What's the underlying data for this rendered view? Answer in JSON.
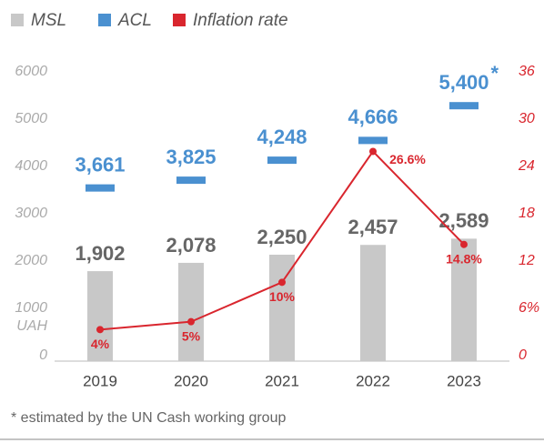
{
  "chart_data": {
    "type": "bar",
    "categories": [
      "2019",
      "2020",
      "2021",
      "2022",
      "2023"
    ],
    "series": [
      {
        "name": "MSL",
        "type": "bar",
        "color": "#c8c8c8",
        "label_color": "#666666",
        "values": [
          1902,
          2078,
          2250,
          2457,
          2589
        ],
        "value_labels": [
          "1,902",
          "2,078",
          "2,250",
          "2,457",
          "2,589"
        ]
      },
      {
        "name": "ACL",
        "type": "marker",
        "color": "#4a90d0",
        "label_color": "#4a90d0",
        "values": [
          3661,
          3825,
          4248,
          4666,
          5400
        ],
        "value_labels": [
          "3,661",
          "3,825",
          "4,248",
          "4,666",
          "5,400"
        ]
      },
      {
        "name": "Inflation rate",
        "type": "line",
        "axis": "y2",
        "color": "#d9262e",
        "values": [
          4,
          5,
          10,
          26.6,
          14.8
        ],
        "value_labels": [
          "4%",
          "5%",
          "10%",
          "26.6%",
          "14.8%"
        ]
      }
    ],
    "ylabel": "UAH",
    "ylim": [
      0,
      6000
    ],
    "yticks": [
      0,
      1000,
      2000,
      3000,
      4000,
      5000,
      6000
    ],
    "y2lim": [
      0,
      36
    ],
    "y2ticks": [
      0,
      {
        "value": 6,
        "label": "6%"
      },
      12,
      18,
      24,
      30,
      36
    ],
    "annotation": "*",
    "footnote": "* estimated by the UN Cash working group"
  }
}
